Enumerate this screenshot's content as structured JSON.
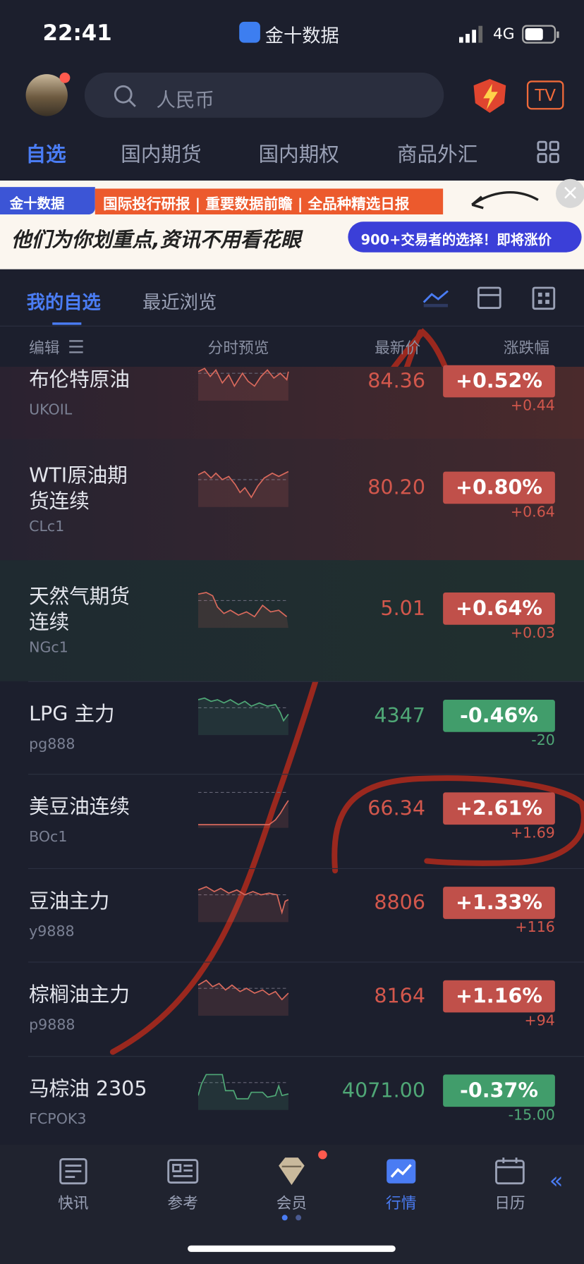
{
  "status": {
    "time": "22:41",
    "app": "金十数据",
    "network": "4G"
  },
  "header": {
    "search_placeholder": "人民币",
    "tv_label": "TV"
  },
  "tabs": [
    "自选",
    "国内期货",
    "国内期权",
    "商品外汇"
  ],
  "banner": {
    "brand": "金十数据",
    "headline": "国际投行研报 | 重要数据前瞻 | 全品种精选日报",
    "slogan": "他们为你划重点,资讯不用看花眼",
    "cta": "900+交易者的选择！即将涨价"
  },
  "subtabs": [
    "我的自选",
    "最近浏览"
  ],
  "columns": [
    "编辑",
    "分时预览",
    "最新价",
    "涨跌幅"
  ],
  "rows": [
    {
      "name_lines": [
        "布伦特原油"
      ],
      "code": "UKOIL",
      "price": "84.36",
      "pct": "+0.52%",
      "change": "+0.44",
      "trend": "up"
    },
    {
      "name_lines": [
        "WTI原油期",
        "货连续"
      ],
      "code": "CLc1",
      "price": "80.20",
      "pct": "+0.80%",
      "change": "+0.64",
      "trend": "up"
    },
    {
      "name_lines": [
        "天然气期货",
        "连续"
      ],
      "code": "NGc1",
      "price": "5.01",
      "pct": "+0.64%",
      "change": "+0.03",
      "trend": "up"
    },
    {
      "name_lines": [
        "LPG 主力"
      ],
      "code": "pg888",
      "price": "4347",
      "pct": "-0.46%",
      "change": "-20",
      "trend": "down"
    },
    {
      "name_lines": [
        "美豆油连续"
      ],
      "code": "BOc1",
      "price": "66.34",
      "pct": "+2.61%",
      "change": "+1.69",
      "trend": "up"
    },
    {
      "name_lines": [
        "豆油主力"
      ],
      "code": "y9888",
      "price": "8806",
      "pct": "+1.33%",
      "change": "+116",
      "trend": "up"
    },
    {
      "name_lines": [
        "棕榈油主力"
      ],
      "code": "p9888",
      "price": "8164",
      "pct": "+1.16%",
      "change": "+94",
      "trend": "up"
    },
    {
      "name_lines": [
        "马棕油 2305"
      ],
      "code": "FCPOK3",
      "price": "4071.00",
      "pct": "-0.37%",
      "change": "-15.00",
      "trend": "down"
    }
  ],
  "nav": [
    "快讯",
    "参考",
    "会员",
    "行情",
    "日历"
  ],
  "active_nav": 3
}
